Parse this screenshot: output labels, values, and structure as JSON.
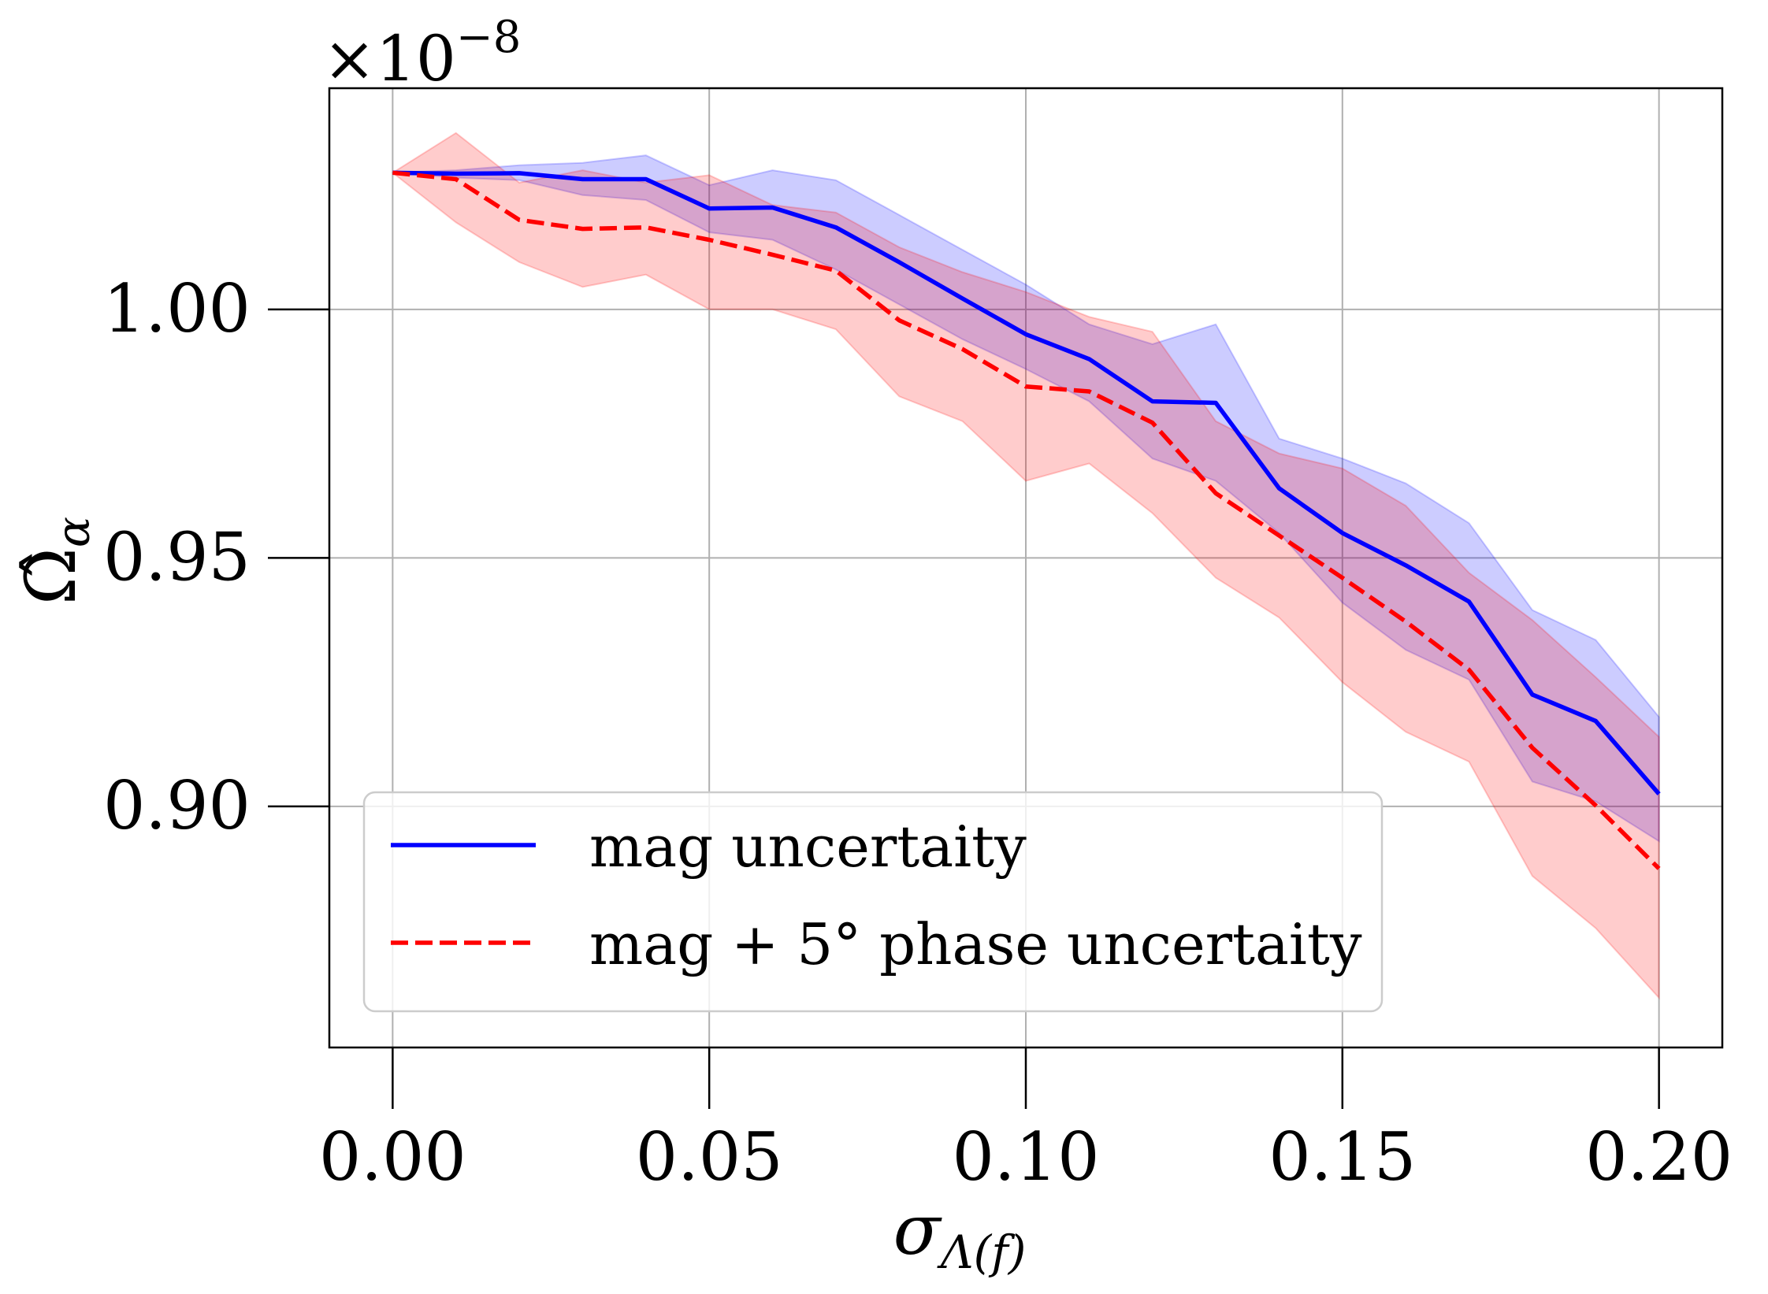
{
  "chart_data": {
    "type": "line",
    "title": "",
    "xlabel": "σΛ(f)",
    "xlabel_main": "σ",
    "xlabel_sub": "Λ(f)",
    "ylabel": "Ω̂α",
    "ylabel_main": "Ω̂",
    "ylabel_sub": "α",
    "offset_text_prefix": "×10",
    "offset_text_exp": "−8",
    "xlim": [
      -0.01,
      0.21
    ],
    "ylim": [
      0.8515,
      1.0445
    ],
    "grid": true,
    "legend_position": "lower-left",
    "x": [
      0.0,
      0.01,
      0.02,
      0.03,
      0.04,
      0.05,
      0.06,
      0.07,
      0.08,
      0.09,
      0.1,
      0.11,
      0.12,
      0.13,
      0.14,
      0.15,
      0.16,
      0.17,
      0.18,
      0.19,
      0.2
    ],
    "x_tick_values": [
      0.0,
      0.05,
      0.1,
      0.15,
      0.2
    ],
    "x_tick_labels": [
      "0.00",
      "0.05",
      "0.10",
      "0.15",
      "0.20"
    ],
    "y_tick_values": [
      0.9,
      0.95,
      1.0
    ],
    "y_tick_labels": [
      "0.90",
      "0.95",
      "1.00"
    ],
    "series": [
      {
        "name": "mag uncertaity",
        "color": "#0000ff",
        "fill_color": "#0000ff",
        "line_style": "solid",
        "values": [
          1.0275,
          1.0273,
          1.0274,
          1.0262,
          1.0262,
          1.0203,
          1.0205,
          1.0165,
          1.0095,
          1.0022,
          0.995,
          0.99,
          0.9815,
          0.9812,
          0.964,
          0.955,
          0.9485,
          0.9412,
          0.9225,
          0.9172,
          0.9025
        ],
        "upper": [
          1.0275,
          1.028,
          1.029,
          1.0295,
          1.031,
          1.025,
          1.028,
          1.026,
          1.019,
          1.012,
          1.005,
          0.997,
          0.993,
          0.997,
          0.974,
          0.97,
          0.965,
          0.957,
          0.9395,
          0.9335,
          0.918
        ],
        "lower": [
          1.0275,
          1.0265,
          1.026,
          1.023,
          1.022,
          1.0155,
          1.014,
          1.008,
          1.001,
          0.994,
          0.988,
          0.9815,
          0.97,
          0.9655,
          0.955,
          0.941,
          0.9315,
          0.9255,
          0.905,
          0.901,
          0.893
        ]
      },
      {
        "name": "mag + 5° phase uncertaity",
        "color": "#ff0000",
        "fill_color": "#ff0000",
        "line_style": "dashed",
        "values": [
          1.0275,
          1.0262,
          1.018,
          1.0162,
          1.0165,
          1.014,
          1.011,
          1.0078,
          0.9978,
          0.992,
          0.9845,
          0.9835,
          0.9772,
          0.963,
          0.9545,
          0.946,
          0.9372,
          0.9275,
          0.9118,
          0.9002,
          0.8875
        ],
        "upper": [
          1.0275,
          1.0355,
          1.0255,
          1.028,
          1.0255,
          1.027,
          1.021,
          1.0195,
          1.0125,
          1.0075,
          1.0035,
          0.9985,
          0.9955,
          0.9775,
          0.971,
          0.968,
          0.9605,
          0.947,
          0.9375,
          0.926,
          0.914
        ],
        "lower": [
          1.0275,
          1.0175,
          1.0095,
          1.0045,
          1.007,
          1.0,
          1.0,
          0.996,
          0.9825,
          0.9775,
          0.9655,
          0.969,
          0.959,
          0.946,
          0.938,
          0.925,
          0.915,
          0.909,
          0.886,
          0.8755,
          0.8615
        ]
      }
    ]
  }
}
